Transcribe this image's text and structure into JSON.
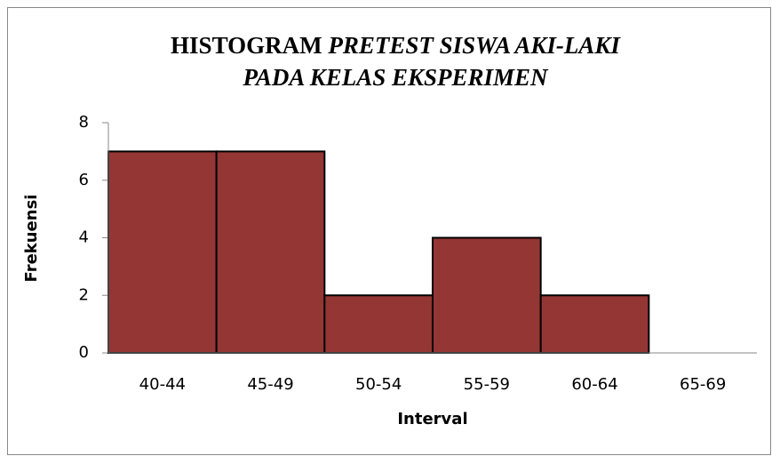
{
  "chart_data": {
    "type": "bar",
    "title": [
      "HISTOGRAM",
      "PRETEST SISWA AKI-LAKI",
      "PADA KELAS EKSPERIMEN"
    ],
    "x_label": "Interval",
    "y_label": "Frekuensi",
    "categories": [
      "40-44",
      "45-49",
      "50-54",
      "55-59",
      "60-64",
      "65-69"
    ],
    "values": [
      7,
      7,
      2,
      4,
      2,
      0
    ],
    "color": "#943634",
    "ylim": [
      0,
      8
    ],
    "yticks": [
      0,
      2,
      4,
      6,
      8
    ],
    "grid": false
  }
}
